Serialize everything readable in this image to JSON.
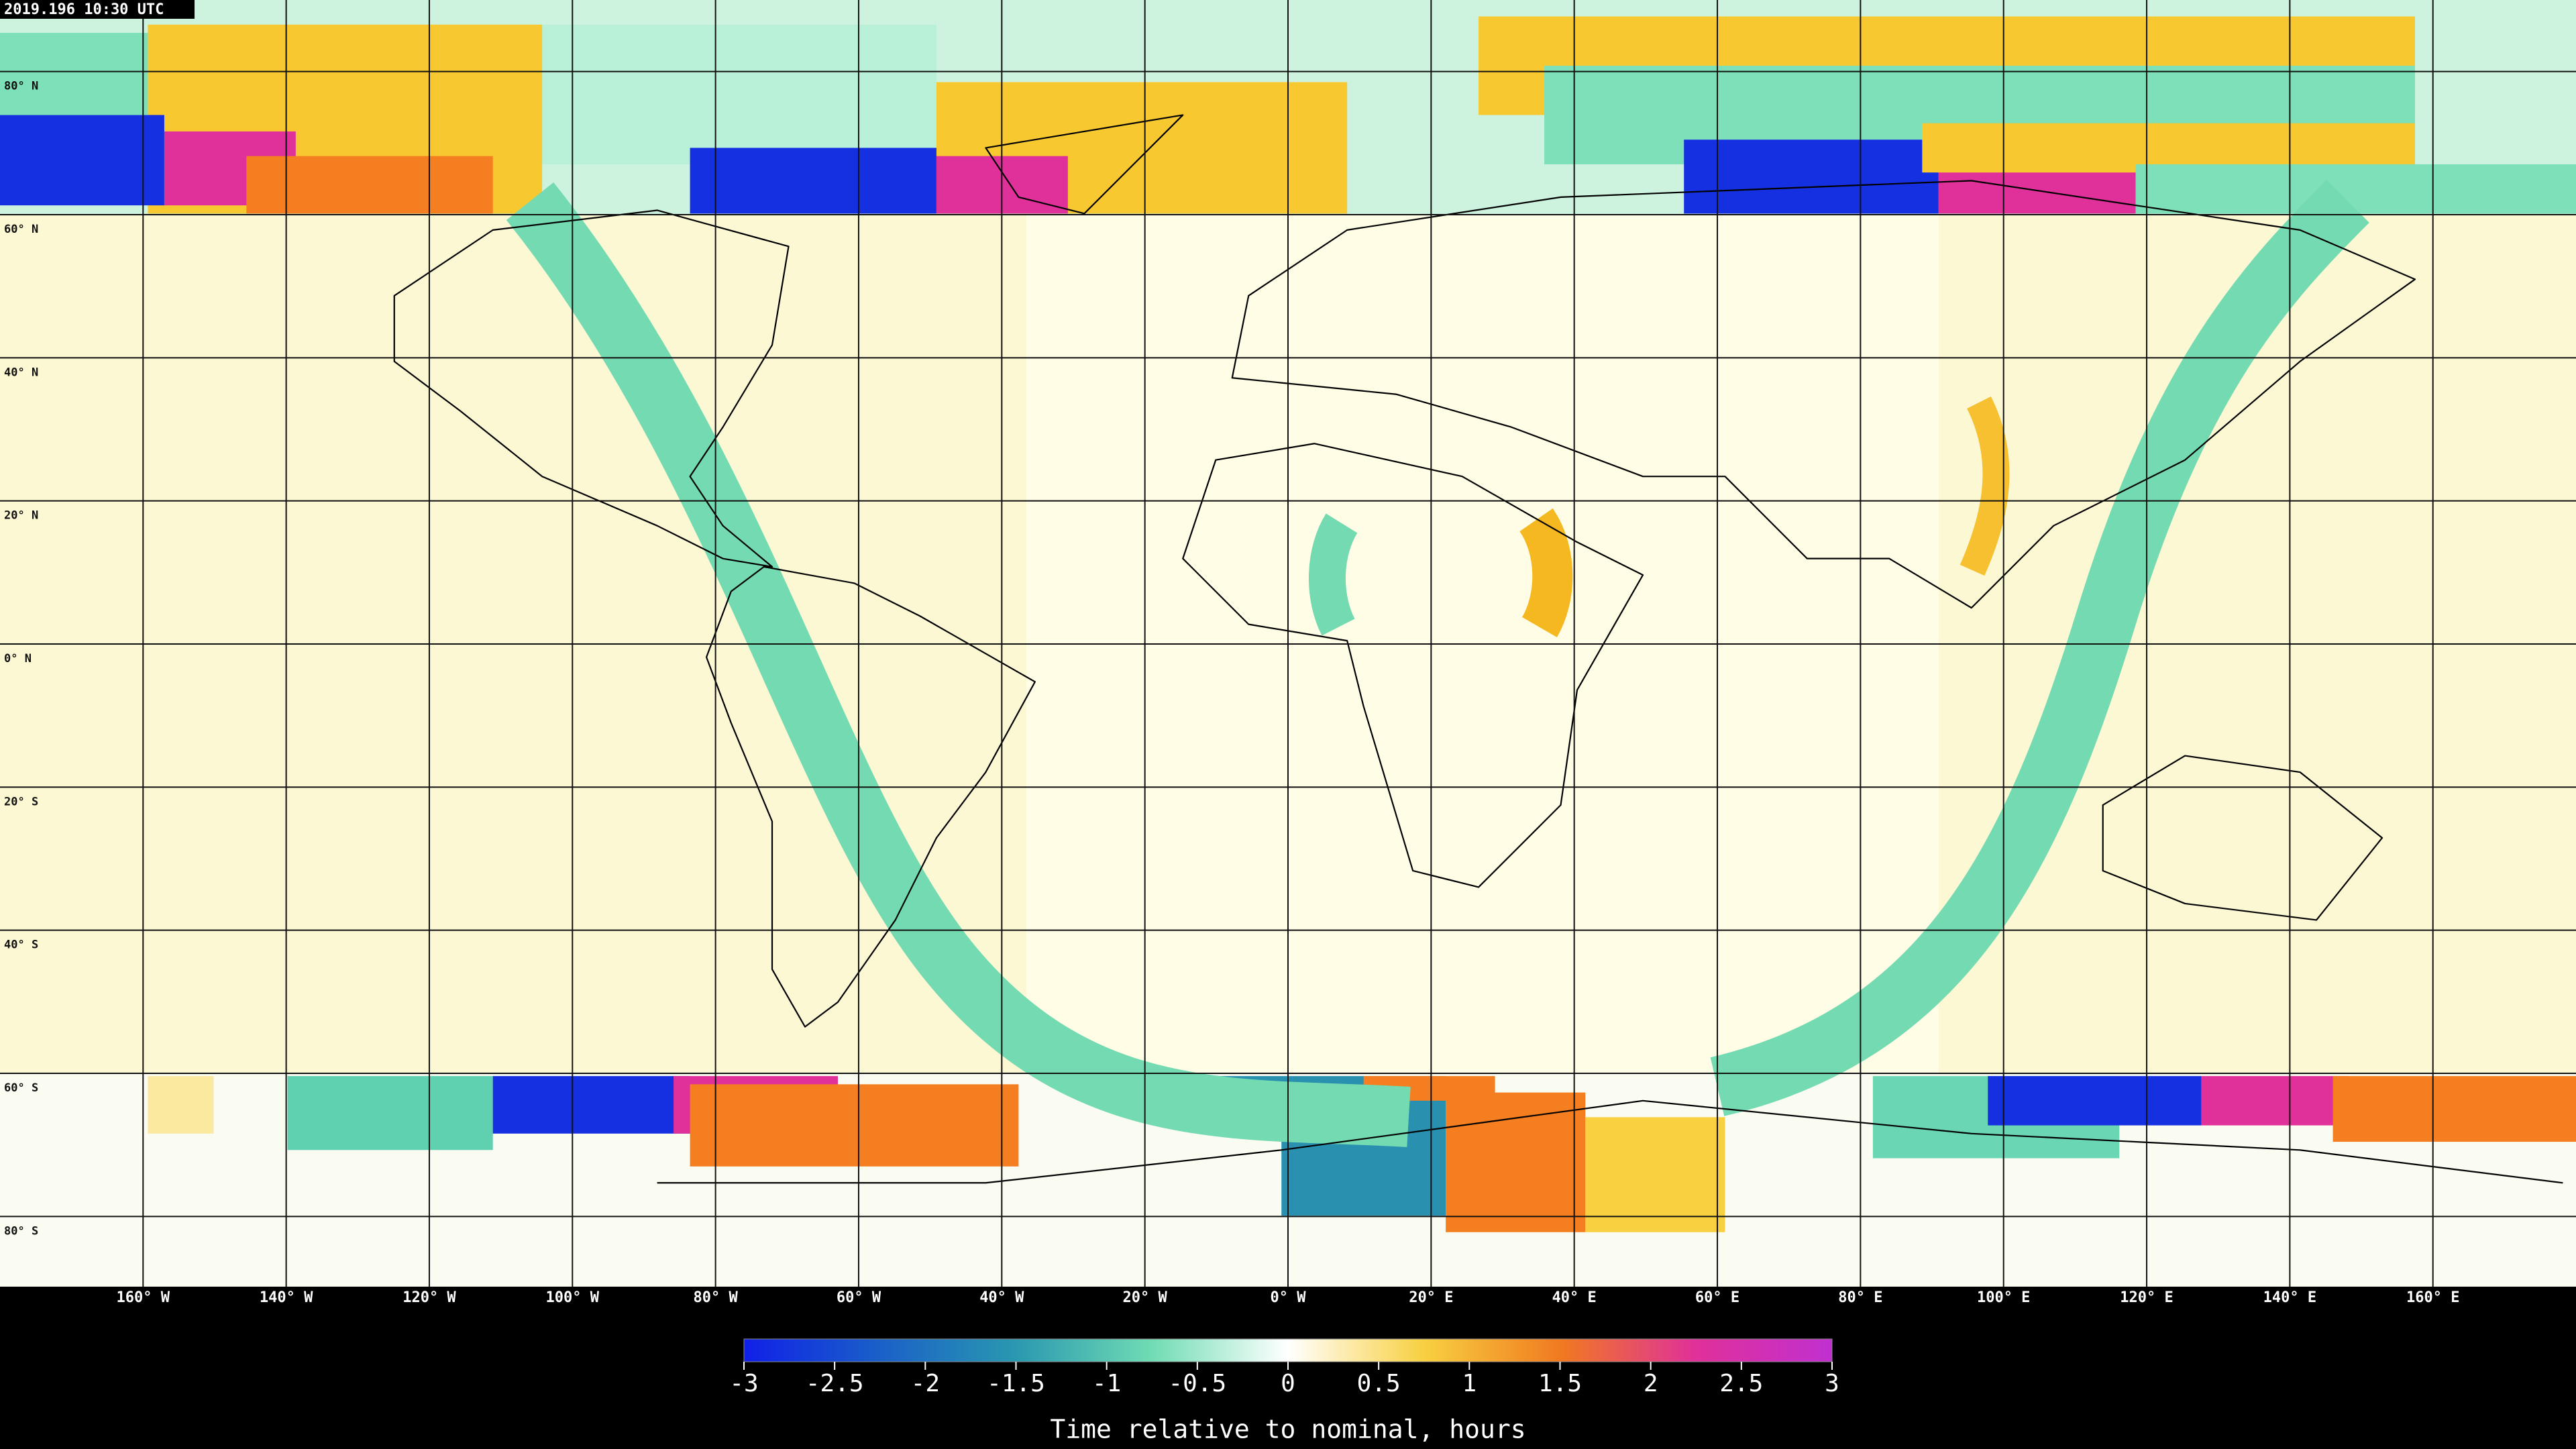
{
  "header": {
    "timestamp": "2019.196 10:30 UTC"
  },
  "map": {
    "lat_labels": [
      "80° N",
      "60° N",
      "40° N",
      "20° N",
      "0° N",
      "20° S",
      "40° S",
      "60° S",
      "80° S"
    ],
    "lon_labels": [
      "160° W",
      "140° W",
      "120° W",
      "100° W",
      "80° W",
      "60° W",
      "40° W",
      "20° W",
      "0° W",
      "20° E",
      "40° E",
      "60° E",
      "80° E",
      "100° E",
      "120° E",
      "140° E",
      "160° E"
    ]
  },
  "colorbar": {
    "lim": [
      -3,
      3
    ],
    "ticks": [
      -3,
      -2.5,
      -2,
      -1.5,
      -1,
      -0.5,
      0,
      0.5,
      1,
      1.5,
      2,
      2.5,
      3
    ],
    "label": "Time relative to nominal, hours",
    "colors": [
      "#1020e8",
      "#1a60c8",
      "#2a98b0",
      "#70dcb4",
      "#ffffff",
      "#f8d040",
      "#f07a20",
      "#e0309a",
      "#c030d0"
    ]
  }
}
